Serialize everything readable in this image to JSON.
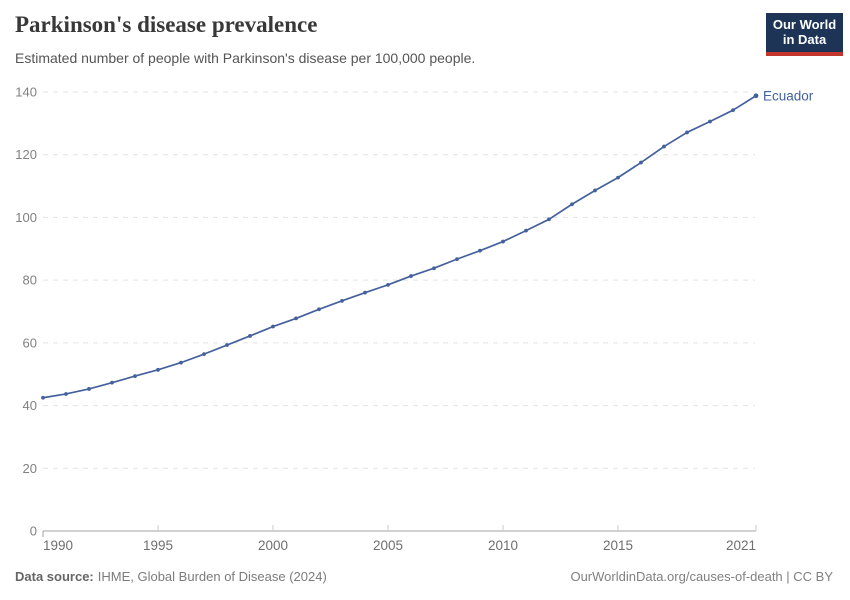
{
  "logo": {
    "line1": "Our World",
    "line2": "in Data"
  },
  "chart_data": {
    "type": "line",
    "title": "Parkinson's disease prevalence",
    "subtitle": "Estimated number of people with Parkinson's disease per 100,000 people.",
    "xlabel": "",
    "ylabel": "",
    "xlim": [
      1990,
      2021
    ],
    "ylim": [
      0,
      140
    ],
    "xticks": [
      1990,
      1995,
      2000,
      2005,
      2010,
      2015,
      2021
    ],
    "yticks": [
      0,
      20,
      40,
      60,
      80,
      100,
      120,
      140
    ],
    "grid": "horizontal-dashed",
    "legend": "end-of-line-label",
    "colors": {
      "grid": "#e3e3e3",
      "axis": "#a3a3a3",
      "tick": "#cccccc",
      "y_label": "#818181",
      "x_label": "#6f6f6f"
    },
    "series": [
      {
        "name": "Ecuador",
        "color": "#44619d",
        "x": [
          1990,
          1991,
          1992,
          1993,
          1994,
          1995,
          1996,
          1997,
          1998,
          1999,
          2000,
          2001,
          2002,
          2003,
          2004,
          2005,
          2006,
          2007,
          2008,
          2009,
          2010,
          2011,
          2012,
          2013,
          2014,
          2015,
          2016,
          2017,
          2018,
          2019,
          2020,
          2021
        ],
        "values": [
          42.5,
          43.7,
          45.3,
          47.3,
          49.4,
          51.4,
          53.7,
          56.4,
          59.3,
          62.2,
          65.2,
          67.8,
          70.7,
          73.4,
          76.0,
          78.5,
          81.3,
          83.8,
          86.7,
          89.4,
          92.3,
          95.8,
          99.4,
          104.2,
          108.6,
          112.7,
          117.5,
          122.6,
          127.1,
          130.6,
          134.2,
          138.8
        ]
      }
    ]
  },
  "footer": {
    "source_label": "Data source:",
    "source_text": "IHME, Global Burden of Disease (2024)",
    "link_text": "OurWorldinData.org/causes-of-death | CC BY"
  }
}
